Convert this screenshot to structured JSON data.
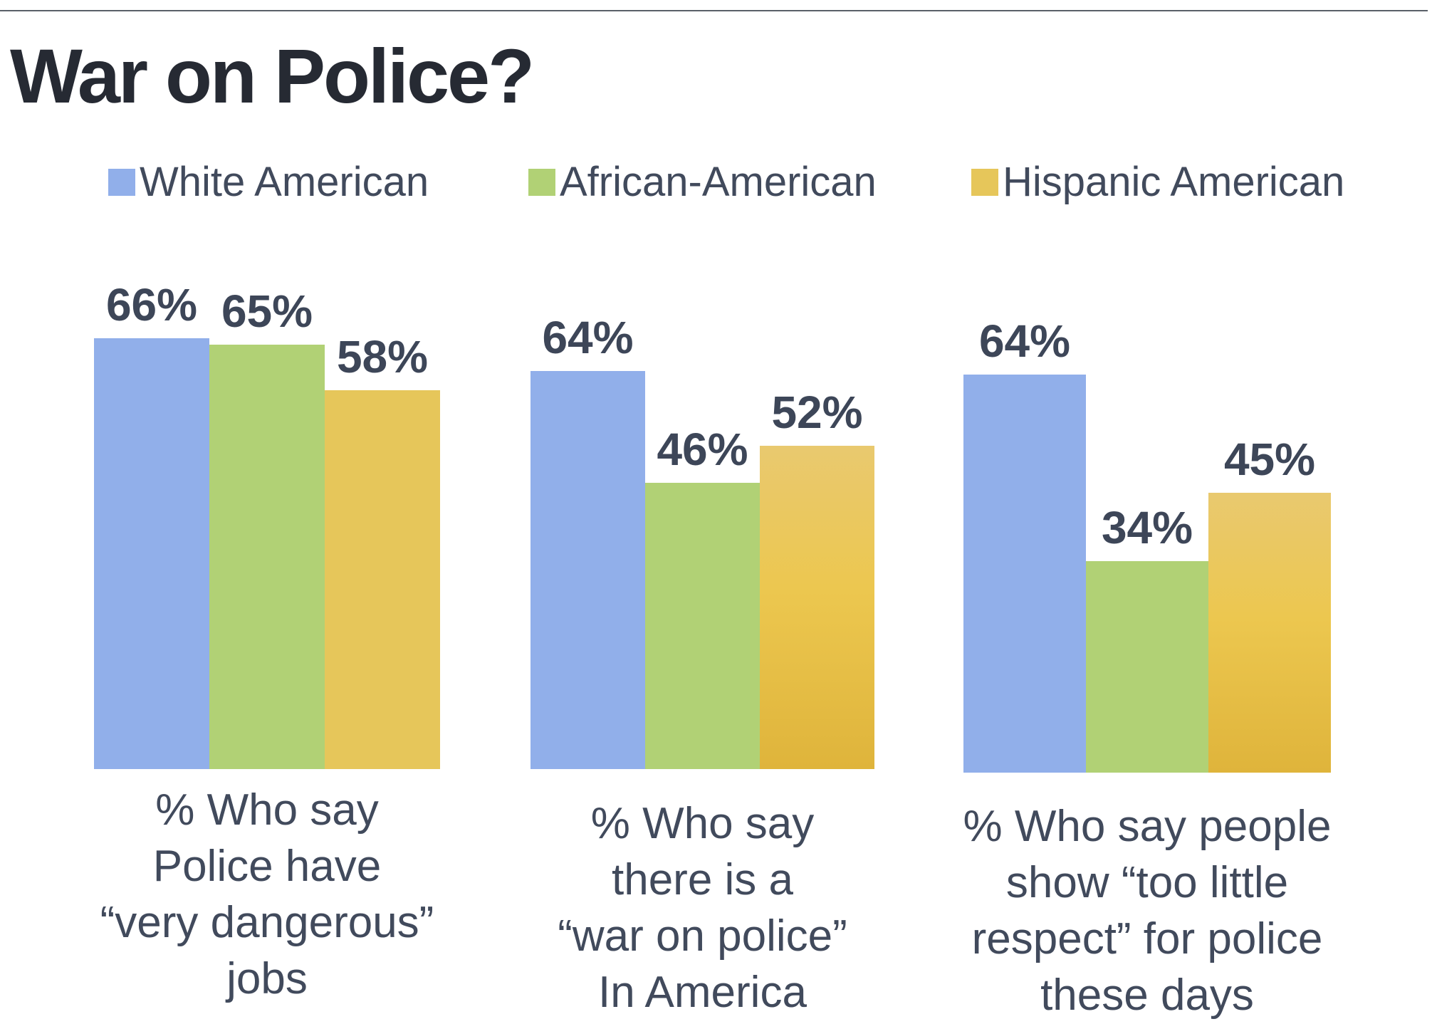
{
  "title": "War on Police?",
  "chart_data": {
    "type": "bar",
    "title": "War on Police?",
    "legend_position": "top",
    "series": [
      {
        "name": "White American",
        "color": "#91AFEA",
        "values": [
          66,
          64,
          64
        ],
        "labels": [
          "66%",
          "64%",
          "64%"
        ]
      },
      {
        "name": "African-American",
        "color": "#B1D175",
        "values": [
          65,
          46,
          34
        ],
        "labels": [
          "65%",
          "46%",
          "34%"
        ]
      },
      {
        "name": "Hispanic American",
        "color": "#E6C65A",
        "values": [
          58,
          52,
          45
        ],
        "labels": [
          "58%",
          "52%",
          "45%"
        ]
      }
    ],
    "categories": [
      [
        "% Who say",
        "Police have",
        "“very dangerous”",
        "jobs"
      ],
      [
        "% Who say",
        "there is a",
        "“war on police”",
        "In America"
      ],
      [
        "% Who say people",
        "show “too little",
        "respect” for police",
        "these days"
      ]
    ],
    "grid": false,
    "ylim": [
      0,
      70
    ]
  }
}
